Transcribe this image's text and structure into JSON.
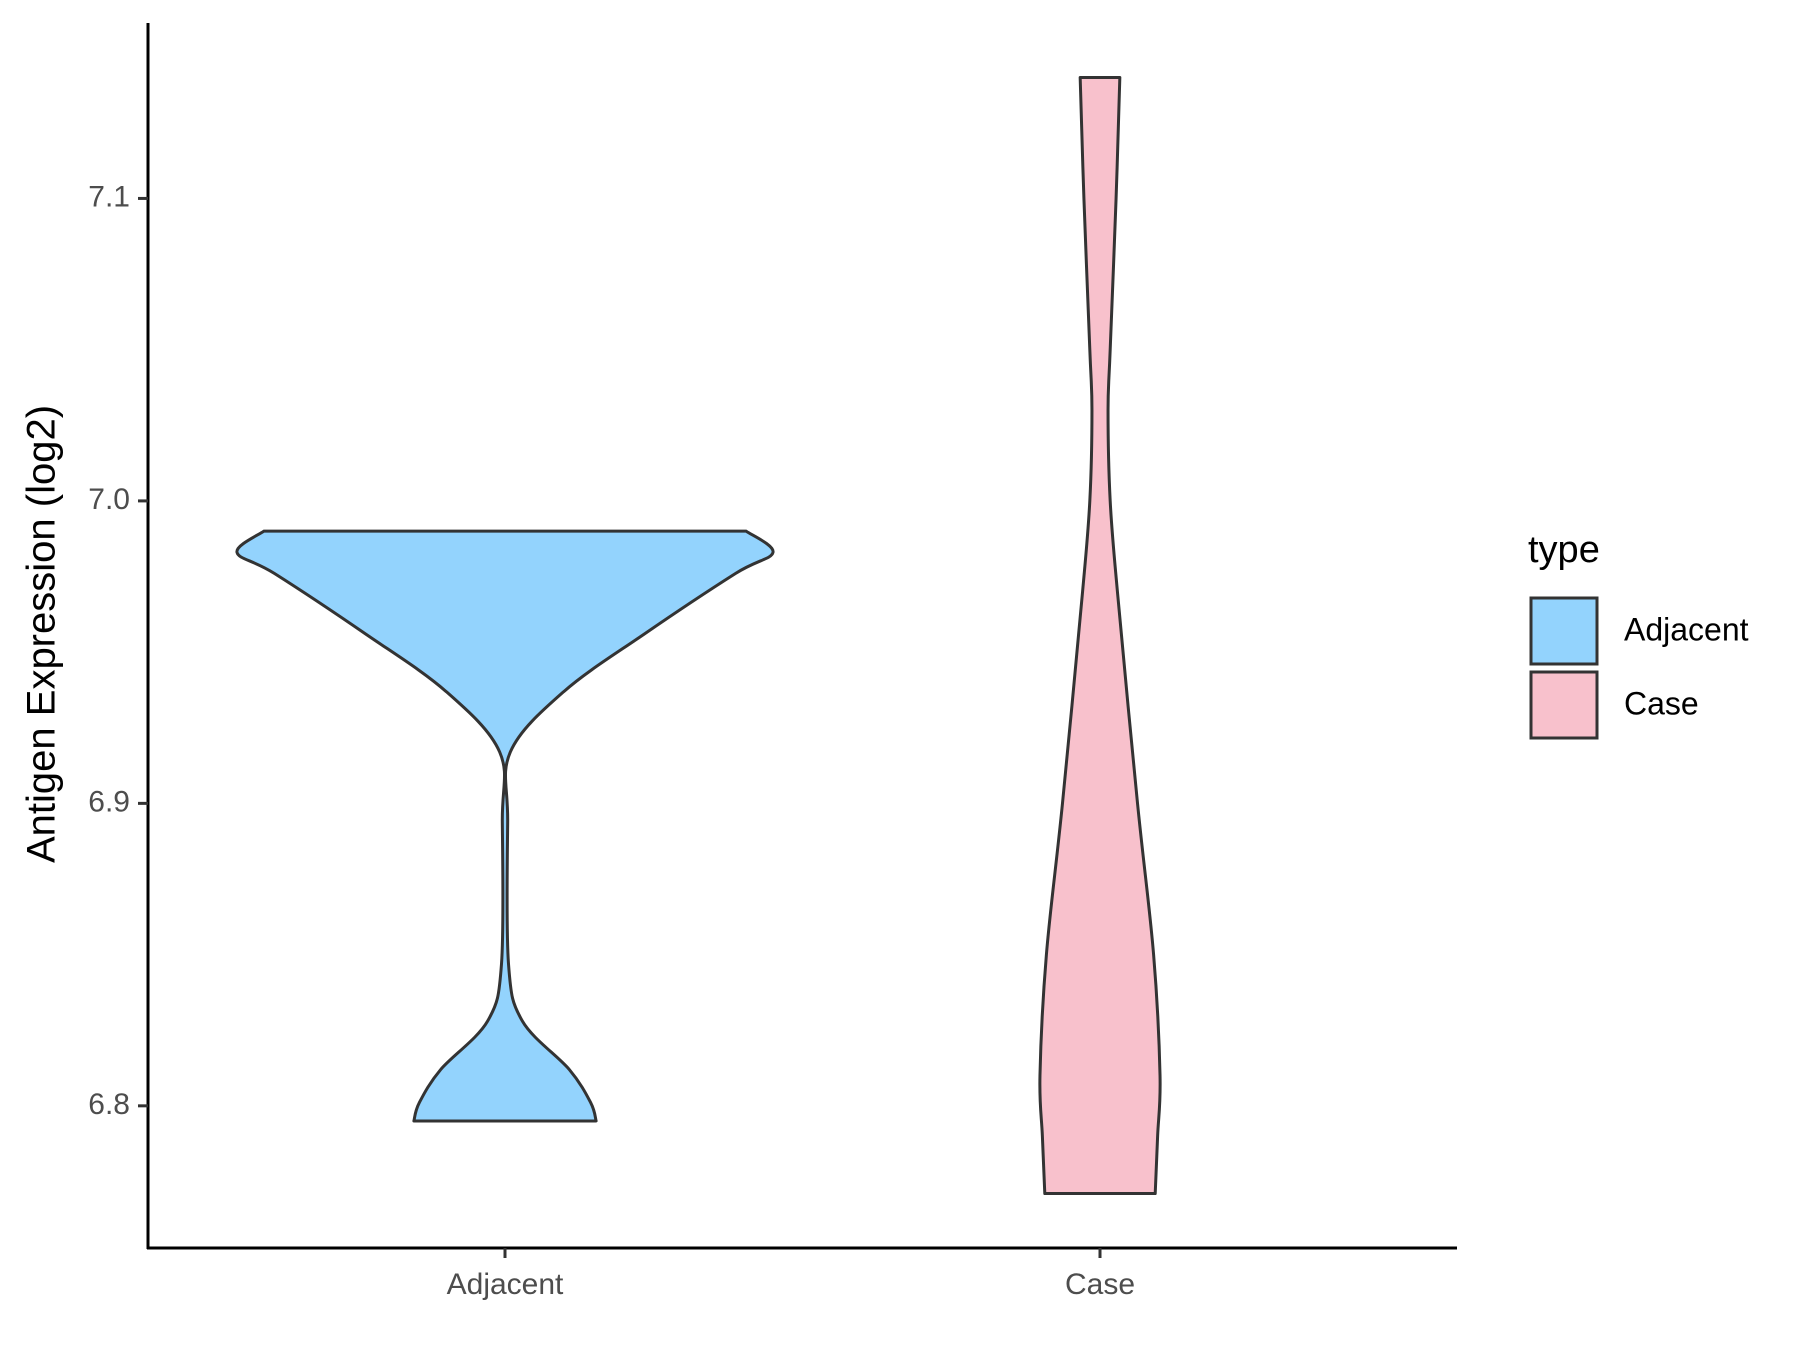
{
  "chart_data": {
    "type": "violin",
    "y_label": "Antigen Expression (log2)",
    "categories": [
      "Adjacent",
      "Case"
    ],
    "ylim": [
      6.753,
      7.158
    ],
    "yticks": [
      6.8,
      6.9,
      {
        "value": 7,
        "label": "7.0"
      },
      7.1
    ],
    "legend_title": "type",
    "legend_position": "right",
    "series": [
      {
        "name": "Adjacent",
        "color": "#93d3fd",
        "density": {
          "y": [
            6.99,
            6.983,
            6.976,
            6.956,
            6.937,
            6.917,
            6.894,
            6.847,
            6.828,
            6.812,
            6.801,
            6.795
          ],
          "width": [
            0.9,
            1.0,
            0.86,
            0.52,
            0.22,
            0.02,
            0.01,
            0.013,
            0.065,
            0.24,
            0.32,
            0.34
          ]
        }
      },
      {
        "name": "Case",
        "color": "#f8c1cc",
        "density": {
          "y": [
            7.14,
            7.1,
            7.05,
            7.03,
            7.0,
            6.97,
            6.9,
            6.85,
            6.81,
            6.79,
            6.771
          ],
          "width": [
            0.074,
            0.06,
            0.038,
            0.03,
            0.038,
            0.065,
            0.14,
            0.2,
            0.224,
            0.215,
            0.206
          ]
        }
      }
    ]
  }
}
